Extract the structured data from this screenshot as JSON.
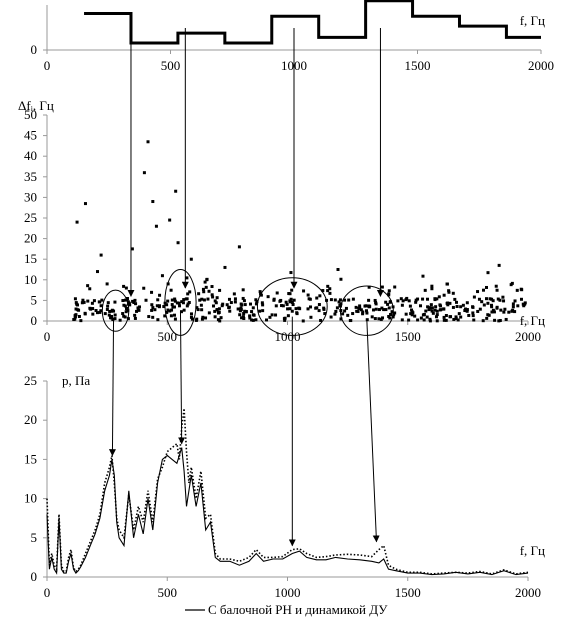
{
  "chart_data": [
    {
      "type": "line",
      "step": true,
      "xlabel": "f, Гц",
      "ylabel": "",
      "xlim": [
        0,
        2000
      ],
      "ylim": [
        0,
        1.6
      ],
      "x_ticks": [
        0,
        500,
        1000,
        1500,
        2000
      ],
      "y_ticks": [
        0
      ],
      "steps": [
        {
          "x0": 150,
          "x1": 340,
          "y": 1.3
        },
        {
          "x0": 340,
          "x1": 530,
          "y": 0.25
        },
        {
          "x0": 530,
          "x1": 720,
          "y": 0.6
        },
        {
          "x0": 720,
          "x1": 910,
          "y": 0.25
        },
        {
          "x0": 910,
          "x1": 1100,
          "y": 1.2
        },
        {
          "x0": 1100,
          "x1": 1290,
          "y": 0.45
        },
        {
          "x0": 1290,
          "x1": 1480,
          "y": 1.75
        },
        {
          "x0": 1480,
          "x1": 1670,
          "y": 1.2
        },
        {
          "x0": 1670,
          "x1": 1860,
          "y": 0.85
        },
        {
          "x0": 1860,
          "x1": 2000,
          "y": 0.45
        }
      ]
    },
    {
      "type": "scatter",
      "xlabel": "f, Гц",
      "ylabel": "Δfᵢ, Гц",
      "xlim": [
        0,
        2000
      ],
      "ylim": [
        0,
        50
      ],
      "x_ticks": [
        0,
        500,
        1000,
        1500,
        2000
      ],
      "y_ticks": [
        0,
        5,
        10,
        15,
        20,
        25,
        30,
        35,
        40,
        45,
        50
      ],
      "highlight_ellipses": [
        {
          "cx": 285,
          "cy": 2.5,
          "rx": 55,
          "ry": 5
        },
        {
          "cx": 555,
          "cy": 4.5,
          "rx": 65,
          "ry": 8
        },
        {
          "cx": 1020,
          "cy": 3.5,
          "rx": 145,
          "ry": 7
        },
        {
          "cx": 1330,
          "cy": 2.5,
          "rx": 110,
          "ry": 6
        }
      ],
      "outlier_points": [
        {
          "x": 125,
          "y": 24
        },
        {
          "x": 160,
          "y": 28.5
        },
        {
          "x": 210,
          "y": 12
        },
        {
          "x": 225,
          "y": 16
        },
        {
          "x": 250,
          "y": 9
        },
        {
          "x": 330,
          "y": 8
        },
        {
          "x": 355,
          "y": 17.5
        },
        {
          "x": 405,
          "y": 36
        },
        {
          "x": 420,
          "y": 43.5
        },
        {
          "x": 440,
          "y": 29
        },
        {
          "x": 455,
          "y": 23
        },
        {
          "x": 510,
          "y": 24.5
        },
        {
          "x": 535,
          "y": 31.5
        },
        {
          "x": 545,
          "y": 19
        },
        {
          "x": 800,
          "y": 18
        },
        {
          "x": 740,
          "y": 13
        },
        {
          "x": 1880,
          "y": 13.5
        },
        {
          "x": 1210,
          "y": 12.5
        },
        {
          "x": 600,
          "y": 15
        },
        {
          "x": 480,
          "y": 11
        }
      ]
    },
    {
      "type": "line",
      "xlabel": "f, Гц",
      "ylabel": "p, Па",
      "xlim": [
        0,
        2000
      ],
      "ylim": [
        0,
        25
      ],
      "x_ticks": [
        0,
        500,
        1000,
        1500,
        2000
      ],
      "y_ticks": [
        0,
        5,
        10,
        15,
        20,
        25
      ],
      "legend": "С балочной РН и  динамикой ДУ",
      "x": [
        0,
        10,
        20,
        30,
        40,
        50,
        60,
        70,
        80,
        90,
        100,
        110,
        120,
        130,
        140,
        160,
        180,
        200,
        220,
        240,
        260,
        270,
        280,
        290,
        300,
        320,
        340,
        360,
        380,
        400,
        420,
        440,
        460,
        480,
        500,
        520,
        540,
        550,
        560,
        570,
        580,
        590,
        600,
        620,
        640,
        660,
        680,
        700,
        720,
        760,
        800,
        840,
        870,
        900,
        940,
        980,
        1020,
        1050,
        1080,
        1120,
        1160,
        1200,
        1250,
        1300,
        1350,
        1380,
        1400,
        1420,
        1450,
        1500,
        1550,
        1600,
        1650,
        1700,
        1750,
        1800,
        1850,
        1900,
        1950,
        2000
      ],
      "series": [
        {
          "name": "С балочной РН и  динамикой ДУ",
          "style": "solid",
          "values": [
            8,
            1,
            2.5,
            1,
            0.5,
            7.5,
            1,
            0.5,
            0.5,
            2,
            3,
            1,
            0.5,
            0.8,
            1.3,
            2.5,
            4,
            5.5,
            7.5,
            11,
            13,
            15,
            13,
            7,
            5,
            4,
            11,
            5,
            8,
            5.5,
            10,
            6,
            12,
            15,
            15.5,
            15,
            14.5,
            15.5,
            16.5,
            13.5,
            9,
            11,
            13,
            9,
            12,
            6,
            7,
            2.5,
            2,
            2,
            1.5,
            2,
            3,
            2,
            2.3,
            2.3,
            3,
            3.3,
            2.5,
            2.2,
            2.2,
            2.5,
            2.3,
            2.2,
            2,
            1.8,
            2.3,
            1,
            0.8,
            0.5,
            0.5,
            0.3,
            0.4,
            0.6,
            0.4,
            0.6,
            0.3,
            0.8,
            0.3,
            0.5
          ]
        },
        {
          "name": "",
          "style": "dotted",
          "values": [
            10,
            1.5,
            3,
            1.5,
            1,
            8,
            1.5,
            0.7,
            0.7,
            2.5,
            3.5,
            1.2,
            0.7,
            1,
            1.5,
            3,
            4.5,
            6,
            8,
            12,
            14,
            15.5,
            12,
            7.5,
            6,
            5,
            10.5,
            6,
            9,
            7,
            11,
            7,
            12.5,
            14,
            16,
            16.5,
            17,
            15,
            19,
            21.5,
            16,
            12,
            14,
            10,
            13.5,
            7.5,
            8,
            3,
            2.3,
            2.3,
            2,
            2.5,
            3.5,
            2.5,
            2.5,
            2.6,
            3.5,
            3.6,
            3,
            2.5,
            2.6,
            2.8,
            2.9,
            2.8,
            2.6,
            3.5,
            4,
            1.5,
            1,
            0.6,
            0.6,
            0.4,
            0.5,
            0.6,
            0.5,
            0.7,
            0.4,
            0.9,
            0.4,
            0.6
          ]
        }
      ]
    }
  ]
}
